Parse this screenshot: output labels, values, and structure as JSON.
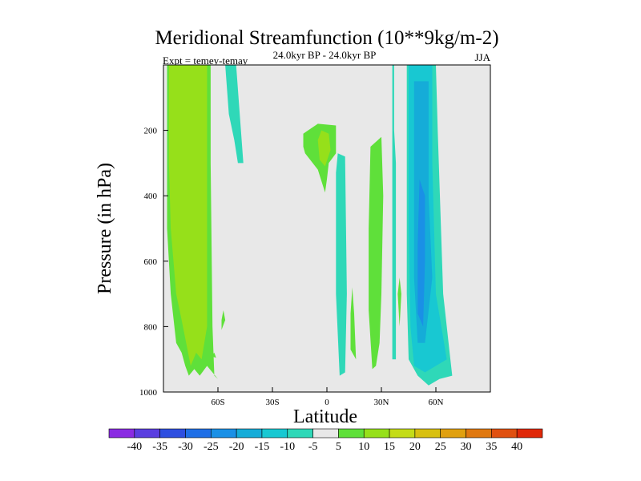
{
  "chart_data": {
    "type": "contour",
    "title": "Meridional Streamfunction (10**9kg/m-2)",
    "subtitle": "24.0kyr BP - 24.0kyr BP",
    "left_annotation": "Expt = temey-temay",
    "right_annotation": "JJA",
    "xlabel": "Latitude",
    "ylabel": "Pressure (in hPa)",
    "xlim": [
      -90,
      90
    ],
    "ylim": [
      1000,
      0
    ],
    "x_ticks": [
      {
        "value": -60,
        "label": "60S"
      },
      {
        "value": -30,
        "label": "30S"
      },
      {
        "value": 0,
        "label": "0"
      },
      {
        "value": 30,
        "label": "30N"
      },
      {
        "value": 60,
        "label": "60N"
      }
    ],
    "y_ticks": [
      {
        "value": 200,
        "label": "200"
      },
      {
        "value": 400,
        "label": "400"
      },
      {
        "value": 600,
        "label": "600"
      },
      {
        "value": 800,
        "label": "800"
      },
      {
        "value": 1000,
        "label": "1000"
      }
    ],
    "background_color": "#e8e8e8",
    "colorbar": {
      "levels": [
        "-40",
        "-35",
        "-30",
        "-25",
        "-20",
        "-15",
        "-10",
        "-5",
        "5",
        "10",
        "15",
        "20",
        "25",
        "30",
        "35",
        "40"
      ],
      "colors": [
        "#8a2be2",
        "#5a3ee0",
        "#2e4fe0",
        "#1f6fe6",
        "#1a90e6",
        "#15acd8",
        "#18c8d2",
        "#2fd8b8",
        "#e8e8e8",
        "#5fe03a",
        "#96e01a",
        "#c4dc18",
        "#d8c010",
        "#e0a010",
        "#e07810",
        "#e05010",
        "#e02808"
      ]
    },
    "regions": [
      {
        "level": "5 to 10",
        "color": "#5fe03a",
        "polygon": [
          [
            -88,
            0
          ],
          [
            -64,
            0
          ],
          [
            -64,
            300
          ],
          [
            -63,
            800
          ],
          [
            -62,
            950
          ],
          [
            -60,
            960
          ],
          [
            -66,
            920
          ],
          [
            -70,
            950
          ],
          [
            -73,
            930
          ],
          [
            -76,
            950
          ],
          [
            -78,
            920
          ],
          [
            -80,
            880
          ],
          [
            -83,
            850
          ],
          [
            -86,
            700
          ],
          [
            -88,
            500
          ]
        ]
      },
      {
        "level": "10 to 15",
        "color": "#96e01a",
        "polygon": [
          [
            -87,
            0
          ],
          [
            -66,
            0
          ],
          [
            -66,
            200
          ],
          [
            -66,
            800
          ],
          [
            -69,
            900
          ],
          [
            -72,
            880
          ],
          [
            -75,
            920
          ],
          [
            -80,
            780
          ],
          [
            -83,
            700
          ],
          [
            -86,
            500
          ],
          [
            -87,
            300
          ]
        ]
      },
      {
        "level": "-10 to -5",
        "color": "#2fd8b8",
        "polygon": [
          [
            -56,
            0
          ],
          [
            -50,
            0
          ],
          [
            -46,
            300
          ],
          [
            -49,
            300
          ],
          [
            -51,
            230
          ],
          [
            -54,
            150
          ]
        ]
      },
      {
        "level": "5 to 10",
        "color": "#5fe03a",
        "polygon": [
          [
            -57,
            750
          ],
          [
            -58,
            780
          ],
          [
            -58,
            810
          ],
          [
            -56,
            780
          ]
        ]
      },
      {
        "level": "5 to 10",
        "color": "#5fe03a",
        "polygon": [
          [
            -62,
            880
          ],
          [
            -61,
            895
          ],
          [
            -64,
            890
          ]
        ]
      },
      {
        "level": "5 to 10",
        "color": "#5fe03a",
        "polygon": [
          [
            -13,
            210
          ],
          [
            -5,
            180
          ],
          [
            5,
            185
          ],
          [
            5,
            270
          ],
          [
            1,
            300
          ],
          [
            0,
            350
          ],
          [
            -1,
            390
          ],
          [
            -5,
            320
          ],
          [
            -12,
            270
          ],
          [
            -13,
            250
          ]
        ]
      },
      {
        "level": "10 to 15",
        "color": "#96e01a",
        "polygon": [
          [
            -5,
            230
          ],
          [
            -3,
            200
          ],
          [
            1,
            210
          ],
          [
            2,
            260
          ],
          [
            -1,
            310
          ],
          [
            -4,
            290
          ]
        ]
      },
      {
        "level": "-10 to -5",
        "color": "#2fd8b8",
        "polygon": [
          [
            5,
            330
          ],
          [
            6,
            270
          ],
          [
            10,
            280
          ],
          [
            11,
            700
          ],
          [
            10,
            940
          ],
          [
            7,
            950
          ],
          [
            5,
            700
          ]
        ]
      },
      {
        "level": "5 to 10",
        "color": "#5fe03a",
        "polygon": [
          [
            14,
            680
          ],
          [
            15,
            760
          ],
          [
            16,
            900
          ],
          [
            13,
            870
          ],
          [
            13,
            760
          ]
        ]
      },
      {
        "level": "5 to 10",
        "color": "#5fe03a",
        "polygon": [
          [
            24,
            250
          ],
          [
            30,
            220
          ],
          [
            31,
            400
          ],
          [
            30,
            700
          ],
          [
            29,
            850
          ],
          [
            27,
            920
          ],
          [
            25,
            930
          ],
          [
            23,
            750
          ],
          [
            23,
            500
          ]
        ]
      },
      {
        "level": "5 to 10",
        "color": "#5fe03a",
        "polygon": [
          [
            40,
            650
          ],
          [
            41,
            700
          ],
          [
            40,
            800
          ],
          [
            39,
            700
          ]
        ]
      },
      {
        "level": "-10 to -5",
        "color": "#2fd8b8",
        "polygon": [
          [
            37,
            0
          ],
          [
            37,
            200
          ],
          [
            38,
            300
          ],
          [
            38,
            900
          ],
          [
            36,
            900
          ],
          [
            36,
            0
          ]
        ]
      },
      {
        "level": "-10 to -5",
        "color": "#2fd8b8",
        "polygon": [
          [
            44,
            0
          ],
          [
            60,
            0
          ],
          [
            61,
            200
          ],
          [
            64,
            700
          ],
          [
            68,
            900
          ],
          [
            69,
            950
          ],
          [
            62,
            960
          ],
          [
            56,
            980
          ],
          [
            50,
            950
          ],
          [
            45,
            900
          ],
          [
            44,
            700
          ],
          [
            44,
            300
          ]
        ]
      },
      {
        "level": "-15 to -10",
        "color": "#18c8d2",
        "polygon": [
          [
            45,
            0
          ],
          [
            58,
            0
          ],
          [
            58,
            300
          ],
          [
            60,
            700
          ],
          [
            66,
            900
          ],
          [
            60,
            920
          ],
          [
            54,
            940
          ],
          [
            48,
            920
          ],
          [
            46,
            800
          ],
          [
            45,
            500
          ]
        ]
      },
      {
        "level": "-20 to -15",
        "color": "#15acd8",
        "polygon": [
          [
            48,
            50
          ],
          [
            56,
            50
          ],
          [
            56,
            400
          ],
          [
            58,
            650
          ],
          [
            54,
            850
          ],
          [
            50,
            850
          ],
          [
            48,
            650
          ]
        ]
      },
      {
        "level": "-25 to -20",
        "color": "#1a90e6",
        "polygon": [
          [
            51,
            350
          ],
          [
            54,
            400
          ],
          [
            54,
            600
          ],
          [
            53,
            800
          ],
          [
            50,
            760
          ],
          [
            50,
            550
          ]
        ]
      }
    ]
  }
}
